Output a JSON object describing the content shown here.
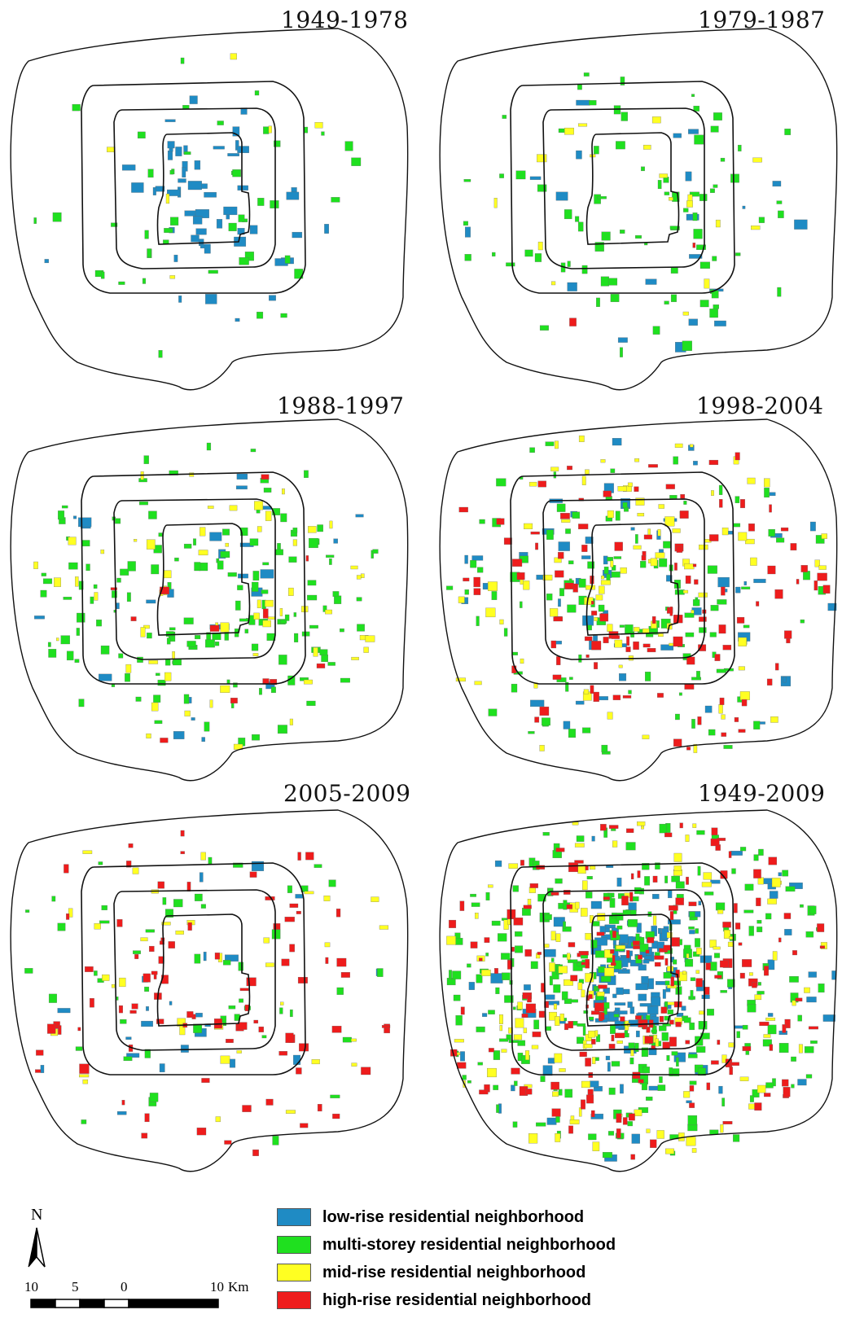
{
  "panels": [
    {
      "id": "p1",
      "title": "1949-1978"
    },
    {
      "id": "p2",
      "title": "1979-1987"
    },
    {
      "id": "p3",
      "title": "1988-1997"
    },
    {
      "id": "p4",
      "title": "1998-2004"
    },
    {
      "id": "p5",
      "title": "2005-2009"
    },
    {
      "id": "p6",
      "title": "1949-2009"
    }
  ],
  "legend": [
    {
      "label": "low-rise residential neighborhood",
      "color": "#1f8bc4"
    },
    {
      "label": "multi-storey residential neighborhood",
      "color": "#1fe01f"
    },
    {
      "label": "mid-rise residential neighborhood",
      "color": "#ffff22"
    },
    {
      "label": "high-rise residential neighborhood",
      "color": "#ee1c1c"
    }
  ],
  "north_arrow": {
    "label": "N"
  },
  "scale_bar": {
    "ticks": [
      "10",
      "5",
      "0",
      "10"
    ],
    "unit": "Km"
  }
}
